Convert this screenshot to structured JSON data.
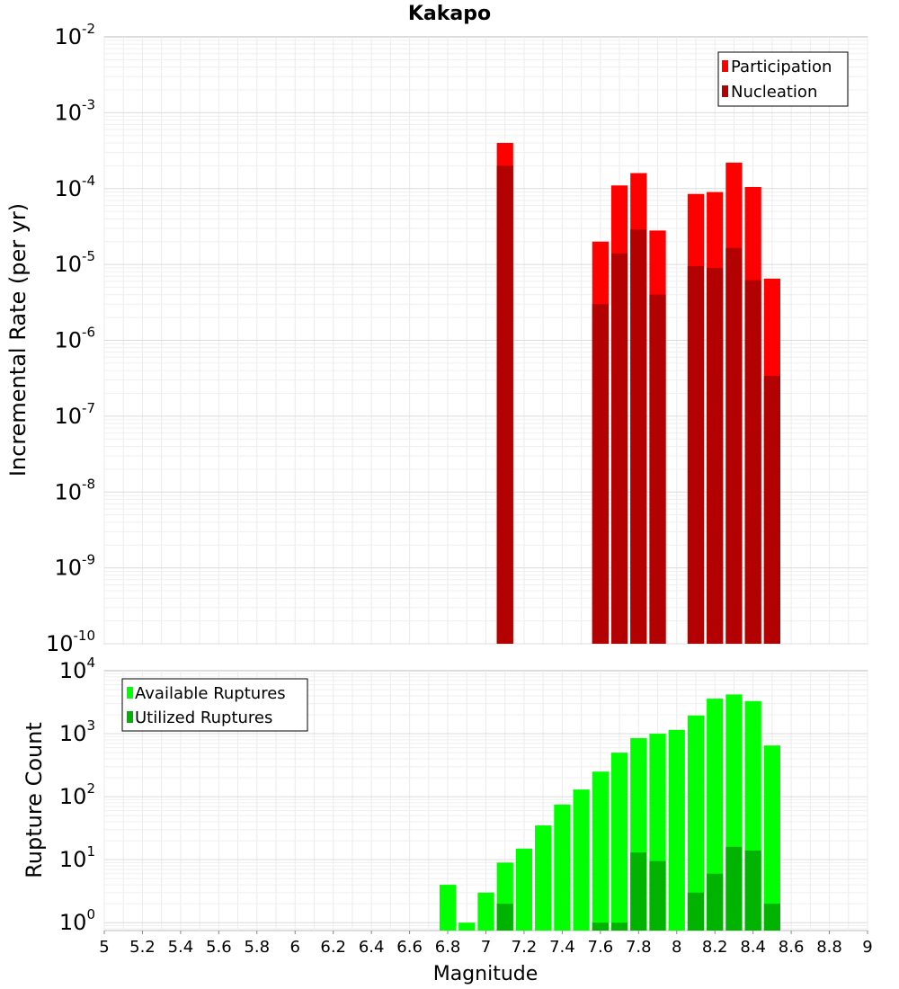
{
  "chart_data": [
    {
      "type": "bar",
      "title": "Kakapo",
      "xlabel": "Magnitude",
      "ylabel": "Incremental Rate (per yr)",
      "yscale": "log",
      "ylim": [
        1e-10,
        0.01
      ],
      "xlim": [
        5,
        9
      ],
      "bin_width": 0.1,
      "legend_position": "top-right",
      "x": [
        7.1,
        7.6,
        7.7,
        7.8,
        7.9,
        8.1,
        8.2,
        8.3,
        8.4,
        8.5
      ],
      "series": [
        {
          "name": "Participation",
          "color": "#ff0000",
          "values": [
            0.0004,
            2e-05,
            0.00011,
            0.00016,
            2.8e-05,
            8.5e-05,
            9e-05,
            0.00022,
            0.000105,
            6.5e-06
          ]
        },
        {
          "name": "Nucleation",
          "color": "#b30000",
          "values": [
            0.0002,
            3e-06,
            1.4e-05,
            2.9e-05,
            4e-06,
            9.5e-06,
            9e-06,
            1.65e-05,
            6.2e-06,
            3.4e-07
          ]
        }
      ],
      "yticks": [
        {
          "base": "10",
          "exp": "-2"
        },
        {
          "base": "10",
          "exp": "-3"
        },
        {
          "base": "10",
          "exp": "-4"
        },
        {
          "base": "10",
          "exp": "-5"
        },
        {
          "base": "10",
          "exp": "-6"
        },
        {
          "base": "10",
          "exp": "-7"
        },
        {
          "base": "10",
          "exp": "-8"
        },
        {
          "base": "10",
          "exp": "-9"
        },
        {
          "base": "10",
          "exp": "-10"
        }
      ]
    },
    {
      "type": "bar",
      "title": "",
      "xlabel": "Magnitude",
      "ylabel": "Rupture Count",
      "yscale": "log",
      "ylim": [
        0.75,
        10000
      ],
      "xlim": [
        5,
        9
      ],
      "bin_width": 0.1,
      "legend_position": "top-left",
      "x": [
        6.8,
        6.9,
        7.0,
        7.1,
        7.2,
        7.3,
        7.4,
        7.5,
        7.6,
        7.7,
        7.8,
        7.9,
        8.0,
        8.1,
        8.2,
        8.3,
        8.4,
        8.5
      ],
      "series": [
        {
          "name": "Available Ruptures",
          "color": "#00ff00",
          "values": [
            4,
            1,
            3,
            9,
            15,
            35,
            75,
            130,
            250,
            500,
            850,
            1000,
            1150,
            1950,
            3600,
            4200,
            3300,
            650
          ]
        },
        {
          "name": "Utilized Ruptures",
          "color": "#00b300",
          "values": [
            0,
            0,
            0,
            2,
            0,
            0,
            0,
            0,
            1,
            1,
            13,
            9.5,
            0,
            3,
            6,
            16,
            14,
            2
          ]
        }
      ],
      "yticks": [
        {
          "base": "10",
          "exp": "4"
        },
        {
          "base": "10",
          "exp": "3"
        },
        {
          "base": "10",
          "exp": "2"
        },
        {
          "base": "10",
          "exp": "1"
        },
        {
          "base": "10",
          "exp": "0"
        }
      ],
      "xticks": [
        "5",
        "5.2",
        "5.4",
        "5.6",
        "5.8",
        "6",
        "6.2",
        "6.4",
        "6.6",
        "6.8",
        "7",
        "7.2",
        "7.4",
        "7.6",
        "7.8",
        "8",
        "8.2",
        "8.4",
        "8.6",
        "8.8",
        "9"
      ]
    }
  ]
}
